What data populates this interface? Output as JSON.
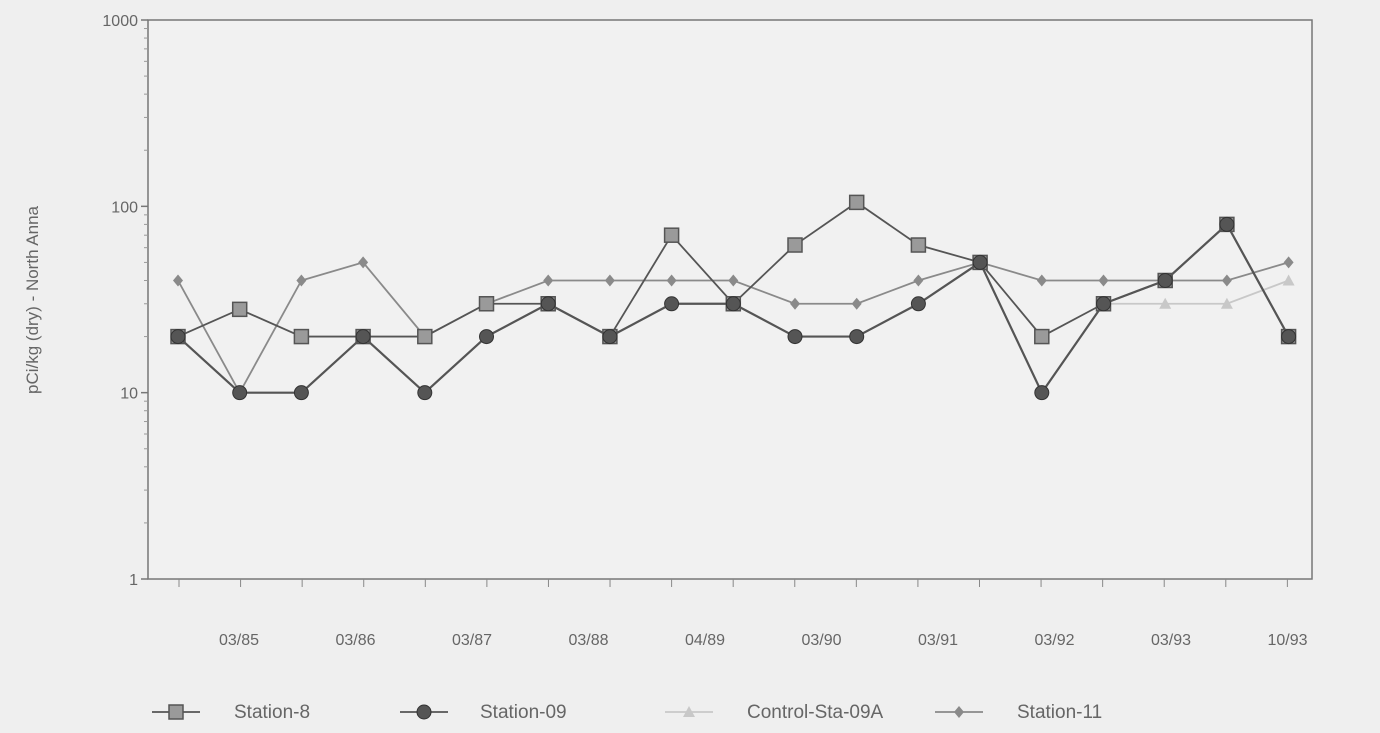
{
  "chart_data": {
    "type": "line",
    "title": "",
    "xlabel": "",
    "ylabel": "pCi/kg (dry) - North Anna",
    "y_scale": "log",
    "ylim": [
      1,
      1000
    ],
    "y_ticks": [
      "1",
      "10",
      "100",
      "1000"
    ],
    "x_tick_labels": [
      "03/85",
      "03/86",
      "03/87",
      "03/88",
      "04/89",
      "03/90",
      "03/91",
      "03/92",
      "03/93",
      "10/93"
    ],
    "grid": false,
    "legend_position": "bottom",
    "series": [
      {
        "name": "Station-8",
        "marker": "square",
        "color": "#555555",
        "values": [
          20,
          28,
          20,
          20,
          20,
          30,
          30,
          20,
          70,
          30,
          62,
          105,
          62,
          50,
          20,
          30,
          40,
          80,
          20
        ]
      },
      {
        "name": "Station-09",
        "marker": "circle",
        "color": "#555555",
        "values": [
          20,
          10,
          10,
          20,
          10,
          20,
          30,
          20,
          30,
          30,
          20,
          20,
          30,
          50,
          10,
          30,
          40,
          80,
          20
        ]
      },
      {
        "name": "Control-Sta-09A",
        "marker": "triangle",
        "color": "#c8c8c8",
        "values": [
          20,
          10,
          10,
          20,
          10,
          20,
          30,
          20,
          30,
          30,
          20,
          20,
          30,
          50,
          10,
          30,
          30,
          30,
          40
        ]
      },
      {
        "name": "Station-11",
        "marker": "diamond",
        "color": "#8a8a8a",
        "values": [
          40,
          10,
          40,
          50,
          20,
          30,
          40,
          40,
          40,
          40,
          30,
          30,
          40,
          50,
          40,
          40,
          40,
          40,
          50
        ]
      }
    ]
  }
}
